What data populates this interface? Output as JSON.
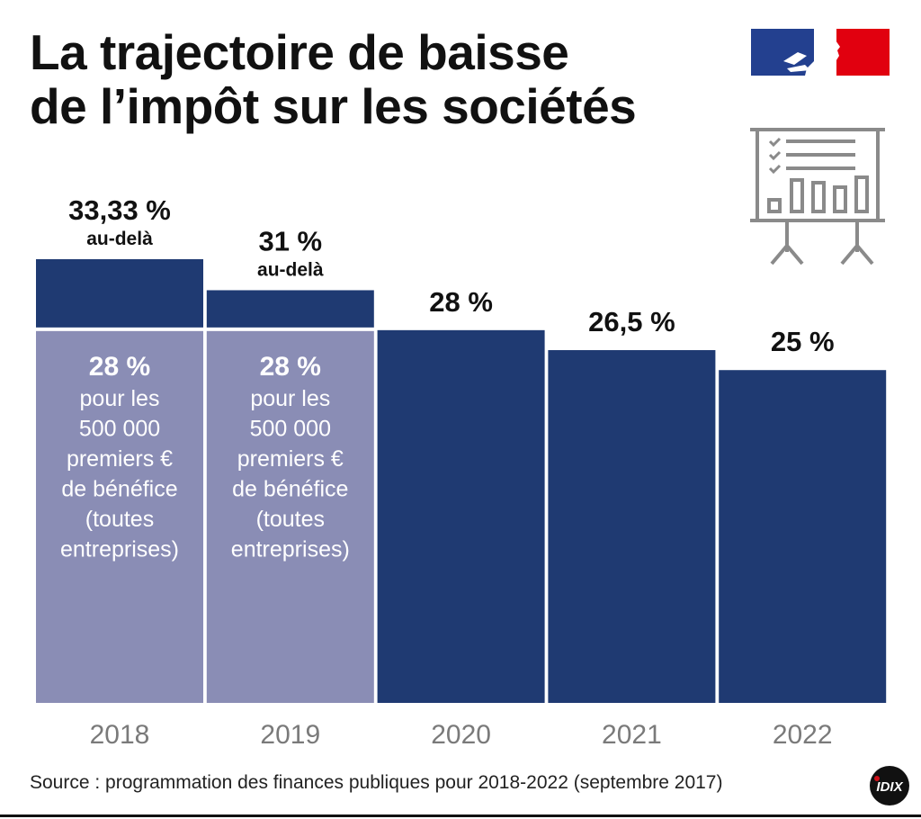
{
  "title_line1": "La trajectoire de baisse",
  "title_line2": "de l’impôt sur les sociétés",
  "source": "Source : programmation des finances publiques pour 2018-2022 (septembre 2017)",
  "logos": {
    "government": "Marianne logo",
    "publisher": "IDIX"
  },
  "icons": [
    "marianne-logo",
    "presentation-board-icon",
    "idix-logo"
  ],
  "colors": {
    "main_rate": "#1f3a72",
    "reduced_rate": "#8a8db5",
    "year_label": "#7a7a7a",
    "text": "#111111"
  },
  "chart_data": {
    "type": "bar",
    "stacked": true,
    "ylim": [
      0,
      33.33
    ],
    "grid": false,
    "categories": [
      "2018",
      "2019",
      "2020",
      "2021",
      "2022"
    ],
    "bars": [
      {
        "year": "2018",
        "rate": 33.33,
        "rate_label": "33,33 %",
        "rate_note": "au-delà",
        "reduced_rate": 28,
        "reduced_label": "28 %",
        "reduced_note": [
          "pour les",
          "500 000",
          "premiers €",
          "de bénéfice",
          "(toutes",
          "entreprises)"
        ]
      },
      {
        "year": "2019",
        "rate": 31,
        "rate_label": "31 %",
        "rate_note": "au-delà",
        "reduced_rate": 28,
        "reduced_label": "28 %",
        "reduced_note": [
          "pour les",
          "500 000",
          "premiers €",
          "de bénéfice",
          "(toutes",
          "entreprises)"
        ]
      },
      {
        "year": "2020",
        "rate": 28,
        "rate_label": "28 %"
      },
      {
        "year": "2021",
        "rate": 26.5,
        "rate_label": "26,5 %"
      },
      {
        "year": "2022",
        "rate": 25,
        "rate_label": "25 %"
      }
    ]
  }
}
